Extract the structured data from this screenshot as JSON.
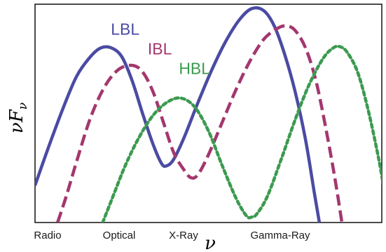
{
  "chart_data": {
    "type": "line",
    "title": "",
    "xlabel": "ν",
    "ylabel_main": "νF",
    "ylabel_sub": "ν",
    "x_ticks": [
      "Radio",
      "Optical",
      "X-Ray",
      "Gamma-Ray"
    ],
    "xlim": [
      0,
      100
    ],
    "ylim": [
      0,
      100
    ],
    "grid": false,
    "series": [
      {
        "name": "LBL",
        "color": "#4b4ba3",
        "dash": "solid",
        "points": [
          [
            0,
            17
          ],
          [
            4,
            35
          ],
          [
            8,
            52
          ],
          [
            12,
            67
          ],
          [
            16,
            76
          ],
          [
            19,
            80
          ],
          [
            22,
            80
          ],
          [
            25,
            76
          ],
          [
            28,
            65
          ],
          [
            31,
            50
          ],
          [
            34,
            36
          ],
          [
            36.5,
            27
          ],
          [
            38,
            26
          ],
          [
            40,
            29
          ],
          [
            43,
            39
          ],
          [
            47,
            55
          ],
          [
            51,
            70
          ],
          [
            55,
            83
          ],
          [
            59,
            93
          ],
          [
            62.5,
            98
          ],
          [
            66,
            97
          ],
          [
            69,
            90
          ],
          [
            72,
            77
          ],
          [
            75,
            60
          ],
          [
            78,
            38
          ],
          [
            80.5,
            14
          ],
          [
            82,
            0
          ]
        ]
      },
      {
        "name": "IBL",
        "color": "#a3376e",
        "dash": "dashed",
        "points": [
          [
            6.5,
            0
          ],
          [
            9,
            12
          ],
          [
            12,
            28
          ],
          [
            16,
            48
          ],
          [
            20,
            62
          ],
          [
            24,
            70
          ],
          [
            28,
            72
          ],
          [
            31,
            69
          ],
          [
            34,
            60
          ],
          [
            37,
            46
          ],
          [
            40,
            32
          ],
          [
            43,
            24
          ],
          [
            45,
            20.5
          ],
          [
            47,
            22
          ],
          [
            50,
            31
          ],
          [
            54,
            46
          ],
          [
            58,
            61
          ],
          [
            62,
            74
          ],
          [
            66,
            84
          ],
          [
            70,
            89
          ],
          [
            72.5,
            90
          ],
          [
            75,
            88
          ],
          [
            78,
            80
          ],
          [
            81,
            65
          ],
          [
            84,
            42
          ],
          [
            86.5,
            20
          ],
          [
            88.5,
            0
          ]
        ]
      },
      {
        "name": "HBL",
        "color": "#3c9a50",
        "dash": "dotted",
        "points": [
          [
            19.5,
            0
          ],
          [
            22,
            10
          ],
          [
            26,
            26
          ],
          [
            30,
            39
          ],
          [
            34,
            49
          ],
          [
            38,
            55
          ],
          [
            42,
            57
          ],
          [
            46,
            53
          ],
          [
            50,
            42
          ],
          [
            54,
            26
          ],
          [
            58,
            11
          ],
          [
            61,
            3
          ],
          [
            62.5,
            2.5
          ],
          [
            64,
            4
          ],
          [
            67,
            12
          ],
          [
            71,
            29
          ],
          [
            75,
            47
          ],
          [
            79,
            63
          ],
          [
            83,
            75
          ],
          [
            86,
            80
          ],
          [
            88,
            80.5
          ],
          [
            90,
            78
          ],
          [
            93,
            69
          ],
          [
            96,
            52
          ],
          [
            99,
            30
          ],
          [
            101,
            12
          ]
        ]
      }
    ],
    "labels": [
      {
        "series": "LBL",
        "text": "LBL",
        "x": 26,
        "y": 86
      },
      {
        "series": "IBL",
        "text": "IBL",
        "x": 36,
        "y": 77
      },
      {
        "series": "HBL",
        "text": "HBL",
        "x": 46,
        "y": 68
      }
    ]
  }
}
